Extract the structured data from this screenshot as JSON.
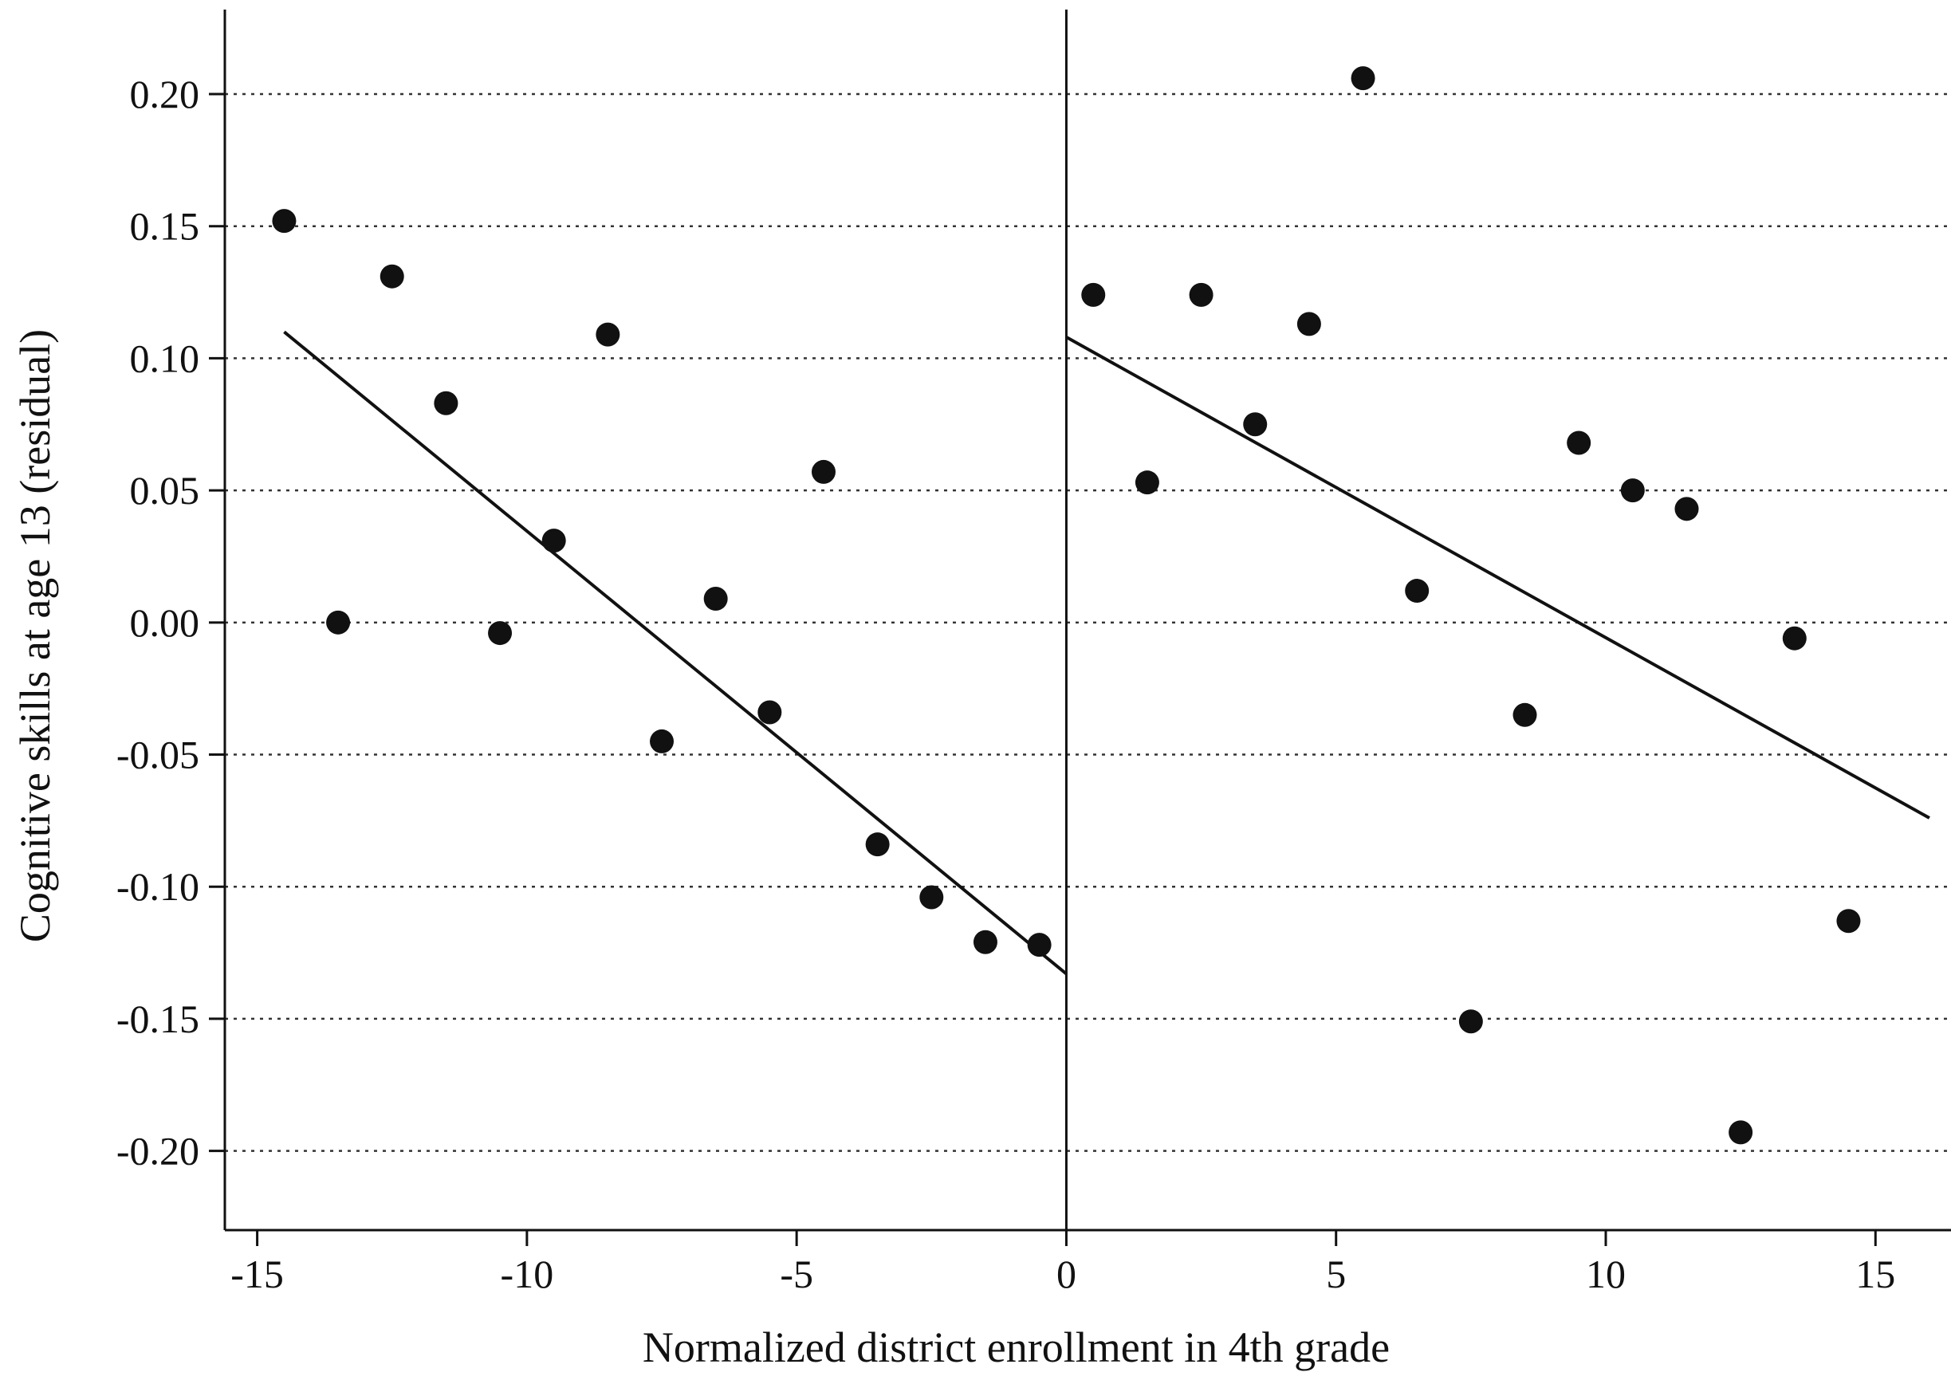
{
  "chart_data": {
    "type": "scatter",
    "title": "",
    "xlabel": "Normalized district enrollment in 4th grade",
    "ylabel": "Cognitive skills at age 13 (residual)",
    "xlim": [
      -15.6,
      16.4
    ],
    "ylim": [
      -0.23,
      0.232
    ],
    "x_ticks": [
      -15,
      -10,
      -5,
      0,
      5,
      10,
      15
    ],
    "x_tick_labels": [
      "-15",
      "-10",
      "-5",
      "0",
      "5",
      "10",
      "15"
    ],
    "y_ticks": [
      0.2,
      0.15,
      0.1,
      0.05,
      0.0,
      -0.05,
      -0.1,
      -0.15,
      -0.2
    ],
    "y_tick_labels": [
      "0.20",
      "0.15",
      "0.10",
      "0.05",
      "0.00",
      "-0.05",
      "-0.10",
      "-0.15",
      "-0.20"
    ],
    "grid": "horizontal dotted",
    "cutoff_x": 0,
    "series": [
      {
        "points": [
          [
            -14.5,
            0.152
          ],
          [
            -13.5,
            0.0
          ],
          [
            -12.5,
            0.131
          ],
          [
            -11.5,
            0.083
          ],
          [
            -10.5,
            -0.004
          ],
          [
            -9.5,
            0.031
          ],
          [
            -8.5,
            0.109
          ],
          [
            -7.5,
            -0.045
          ],
          [
            -6.5,
            0.009
          ],
          [
            -5.5,
            -0.034
          ],
          [
            -4.5,
            0.057
          ],
          [
            -3.5,
            -0.084
          ],
          [
            -2.5,
            -0.104
          ],
          [
            -1.5,
            -0.121
          ],
          [
            -0.5,
            -0.122
          ]
        ]
      },
      {
        "points": [
          [
            0.5,
            0.124
          ],
          [
            1.5,
            0.053
          ],
          [
            2.5,
            0.124
          ],
          [
            3.5,
            0.075
          ],
          [
            4.5,
            0.113
          ],
          [
            5.5,
            0.206
          ],
          [
            6.5,
            0.012
          ],
          [
            7.5,
            -0.151
          ],
          [
            8.5,
            -0.035
          ],
          [
            9.5,
            0.068
          ],
          [
            10.5,
            0.05
          ],
          [
            11.5,
            0.043
          ],
          [
            12.5,
            -0.193
          ],
          [
            13.5,
            -0.006
          ],
          [
            14.5,
            -0.113
          ]
        ]
      }
    ],
    "fit_lines": [
      {
        "x": [
          -14.5,
          0
        ],
        "y": [
          0.11,
          -0.133
        ]
      },
      {
        "x": [
          0,
          16
        ],
        "y": [
          0.108,
          -0.074
        ]
      }
    ]
  }
}
